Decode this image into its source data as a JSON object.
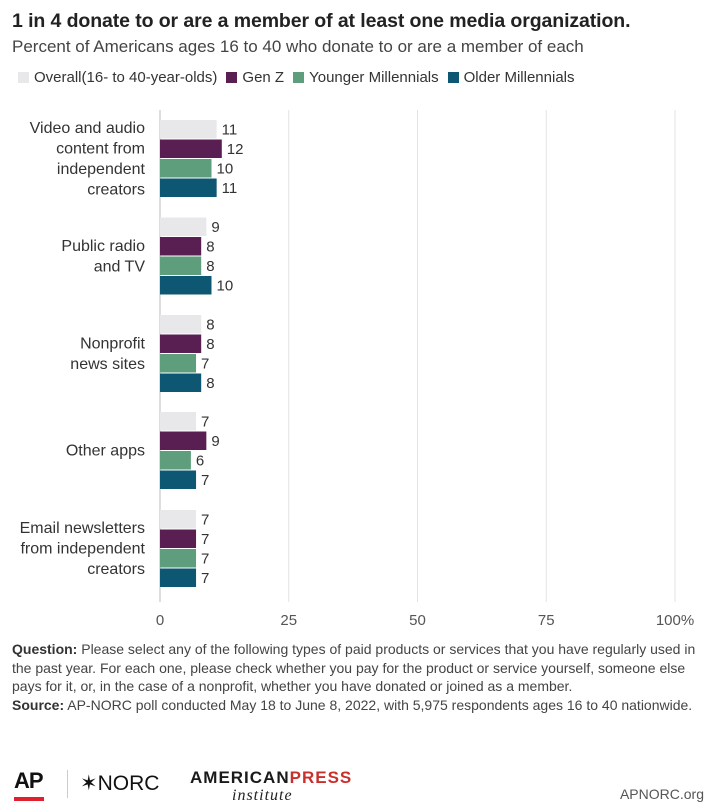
{
  "header": {
    "title": "1 in 4 donate to or are a member of at least one media organization.",
    "subtitle": "Percent of Americans ages 16 to 40 who donate to or are a member of each"
  },
  "chart_data": {
    "type": "bar",
    "orientation": "horizontal",
    "categories": [
      [
        "Video and audio",
        "content from",
        "independent",
        "creators"
      ],
      [
        "Public radio",
        "and TV"
      ],
      [
        "Nonprofit",
        "news sites"
      ],
      [
        "Other apps"
      ],
      [
        "Email newsletters",
        "from independent",
        "creators"
      ]
    ],
    "series": [
      {
        "name": "Overall(16- to 40-year-olds)",
        "color": "#e8e8ea",
        "values": [
          11,
          9,
          8,
          7,
          7
        ]
      },
      {
        "name": "Gen Z",
        "color": "#5a1f52",
        "values": [
          12,
          8,
          8,
          9,
          7
        ]
      },
      {
        "name": "Younger Millennials",
        "color": "#5e9e7c",
        "values": [
          10,
          8,
          7,
          6,
          7
        ]
      },
      {
        "name": "Older Millennials",
        "color": "#0d5773",
        "values": [
          11,
          10,
          8,
          7,
          7
        ]
      }
    ],
    "x_ticks": [
      "0",
      "25",
      "50",
      "75",
      "100%"
    ],
    "x_tick_values": [
      0,
      25,
      50,
      75,
      100
    ],
    "xlim": [
      0,
      100
    ],
    "grid": true,
    "legend_position": "top"
  },
  "footer": {
    "question_label": "Question:",
    "question_text": " Please select any of the following types of paid products or services that you have regularly used in the past year. For each one, please check whether you pay for the product or service yourself, someone else pays for it, or, in the case of a nonprofit, whether you have donated or joined as a member.",
    "source_label": "Source:",
    "source_text": " AP-NORC poll conducted May 18 to June 8, 2022, with 5,975 respondents ages 16 to 40 nationwide."
  },
  "logos": {
    "ap": "AP",
    "norc": "✶NORC",
    "api_line1_a": "AMERICAN",
    "api_line1_b": "PRESS",
    "api_line2": "institute",
    "site": "APNORC.org"
  }
}
